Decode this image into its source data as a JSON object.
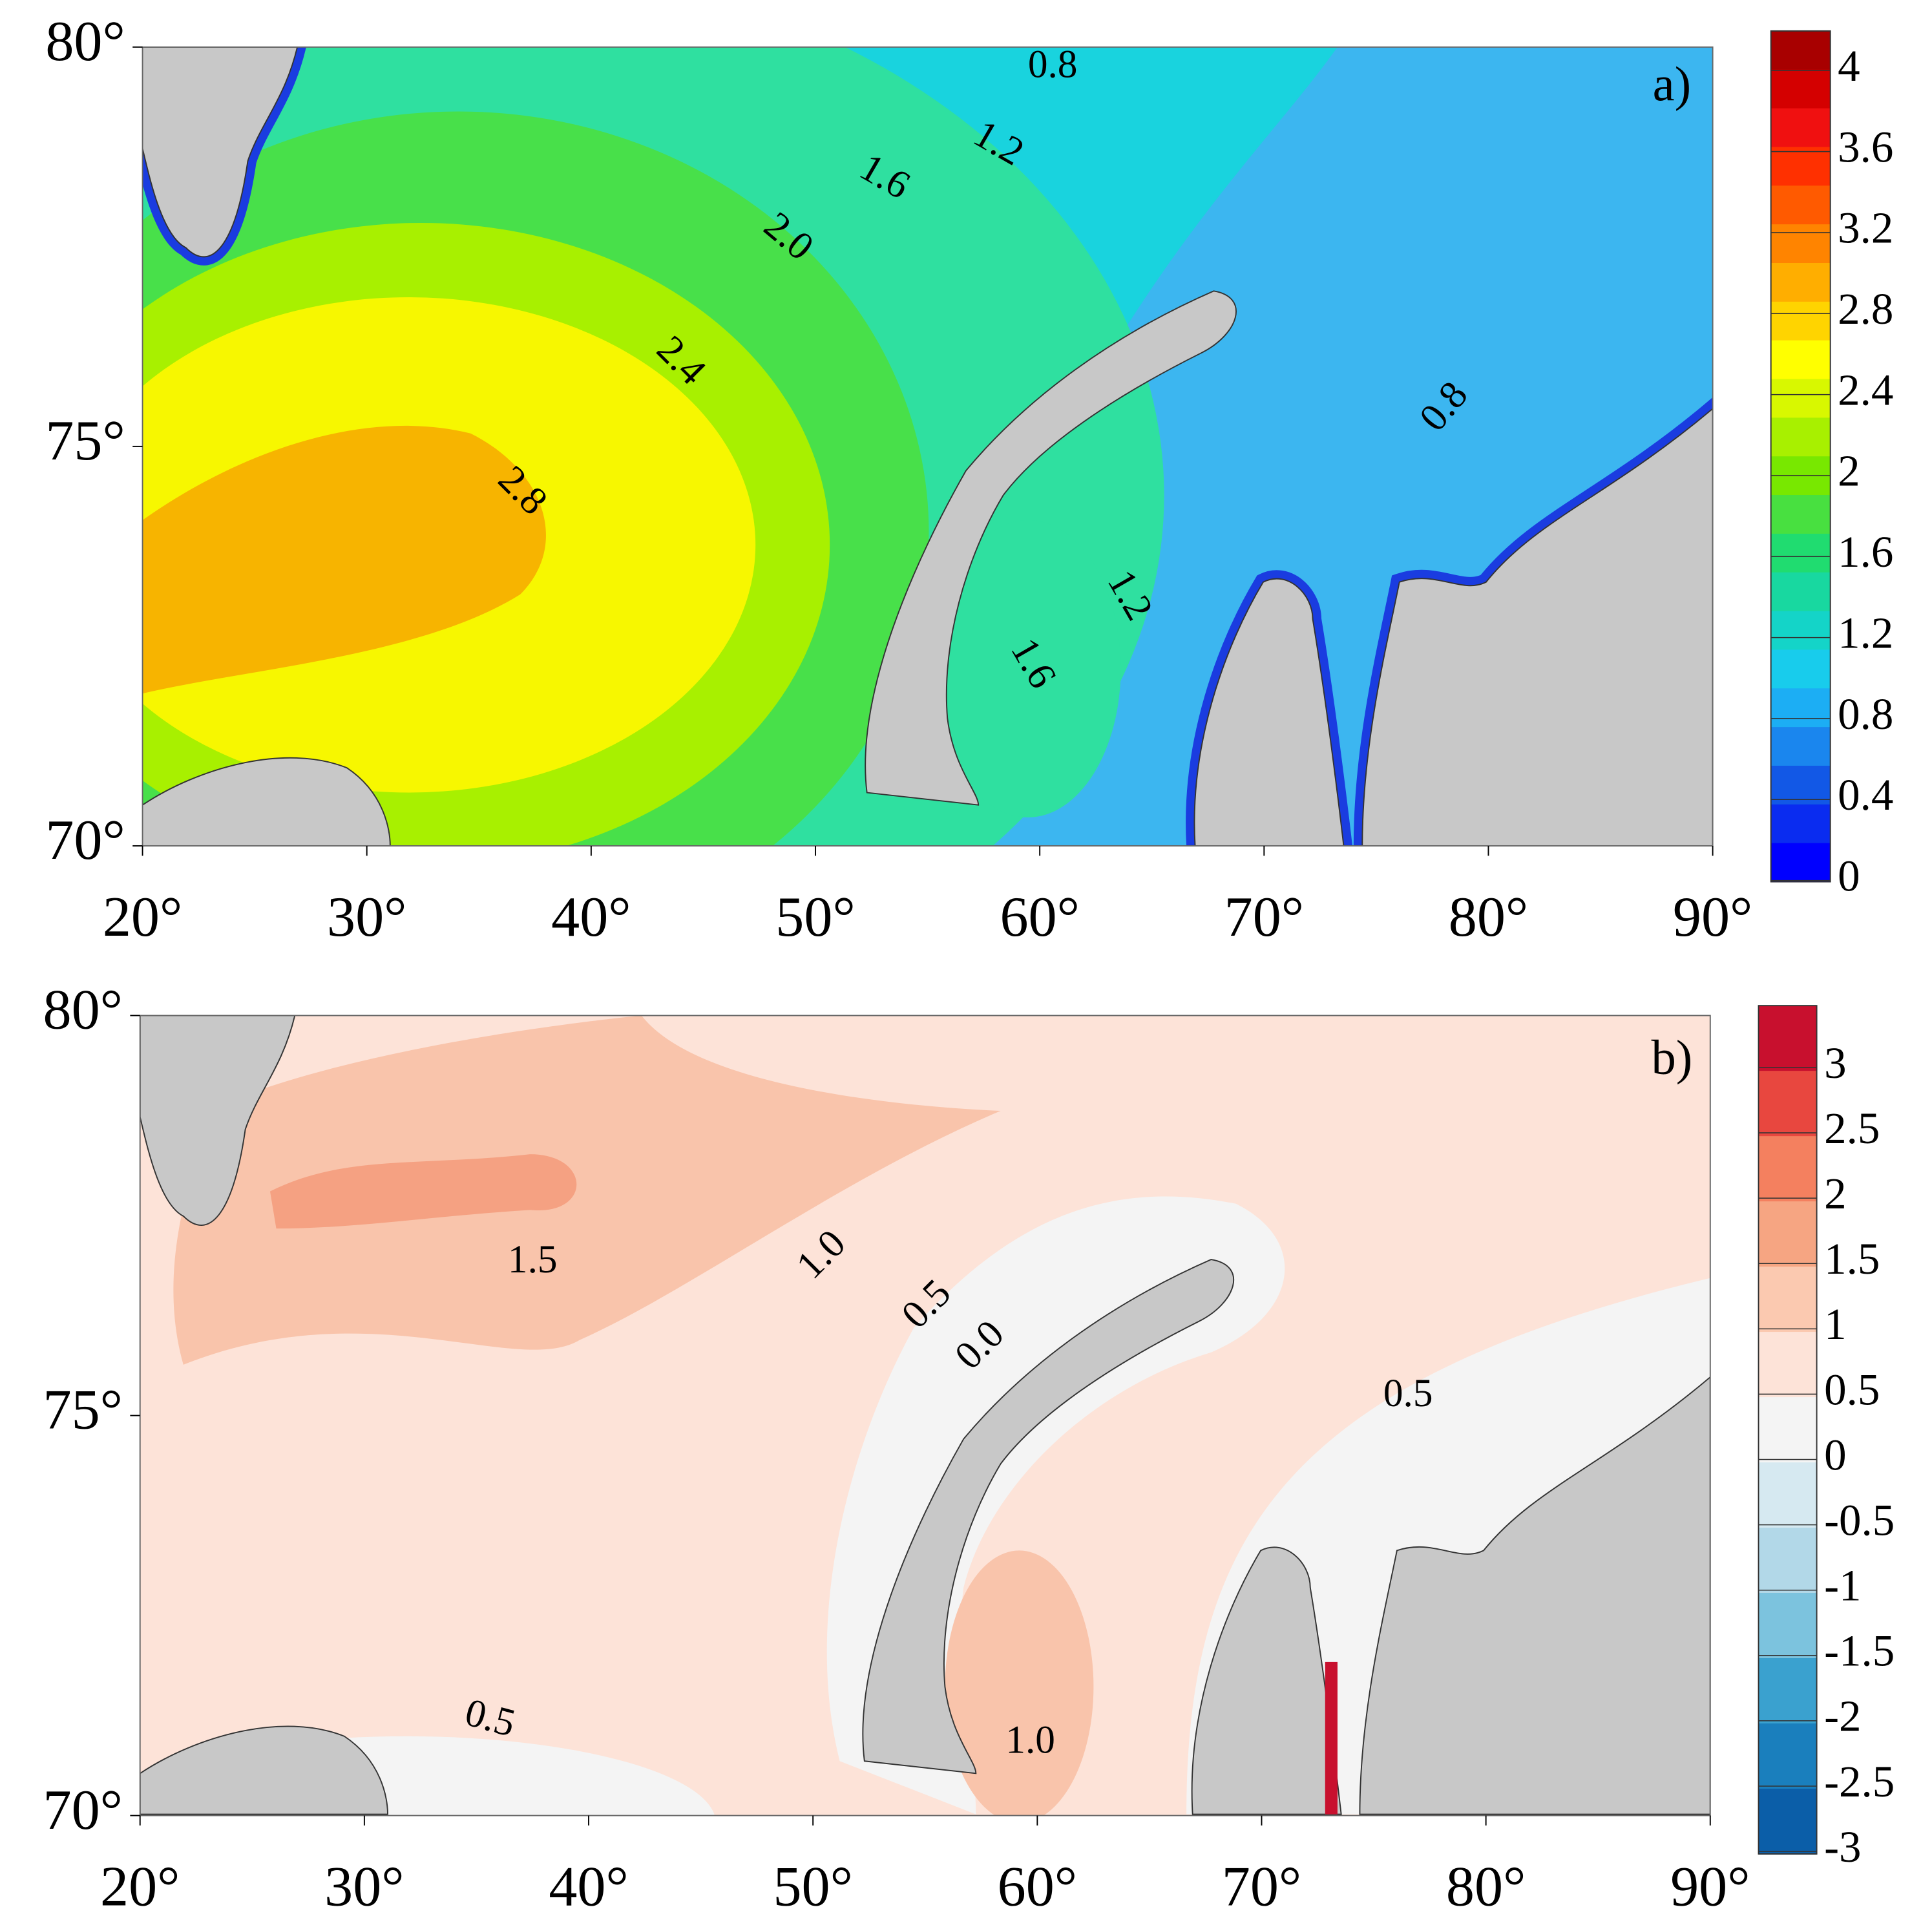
{
  "panels": [
    {
      "label": "a)",
      "x_ticks": [
        "20°",
        "30°",
        "40°",
        "50°",
        "60°",
        "70°",
        "80°",
        "90°"
      ],
      "y_ticks": [
        "80°",
        "75°",
        "70°"
      ],
      "colorbar": {
        "ticks": [
          "4",
          "3.6",
          "3.2",
          "2.8",
          "2.4",
          "2",
          "1.6",
          "1.2",
          "0.8",
          "0.4",
          "0"
        ],
        "colors": [
          "#a80000",
          "#d40000",
          "#f01010",
          "#ff3000",
          "#ff5a00",
          "#ff8400",
          "#ffae00",
          "#ffd400",
          "#ffff00",
          "#d8f800",
          "#a8f000",
          "#78e800",
          "#48e040",
          "#20dc70",
          "#18d8a0",
          "#14d4c8",
          "#18ccec",
          "#1caef4",
          "#1a86ee",
          "#1258e6",
          "#0a2cf0",
          "#0000ff"
        ]
      },
      "contour_labels": [
        "0.8",
        "1.2",
        "1.6",
        "2.0",
        "2.4",
        "2.8",
        "0.8",
        "1.2",
        "1.6"
      ]
    },
    {
      "label": "b)",
      "x_ticks": [
        "20°",
        "30°",
        "40°",
        "50°",
        "60°",
        "70°",
        "80°",
        "90°"
      ],
      "y_ticks": [
        "80°",
        "75°",
        "70°"
      ],
      "colorbar": {
        "ticks": [
          "3",
          "2.5",
          "2",
          "1.5",
          "1",
          "0.5",
          "0",
          "-0.5",
          "-1",
          "-1.5",
          "-2",
          "-2.5",
          "-3"
        ],
        "colors": [
          "#c8102e",
          "#e8473f",
          "#f4805f",
          "#f6a582",
          "#fbc9b0",
          "#fde3d8",
          "#f4f4f4",
          "#d6e9f1",
          "#b2d8e8",
          "#7cc3de",
          "#3aa1cf",
          "#1a7fbd",
          "#0b5ea8"
        ]
      },
      "contour_labels": [
        "1.5",
        "1.0",
        "0.5",
        "0.0",
        "0.5",
        "0.5",
        "1.0"
      ]
    }
  ]
}
